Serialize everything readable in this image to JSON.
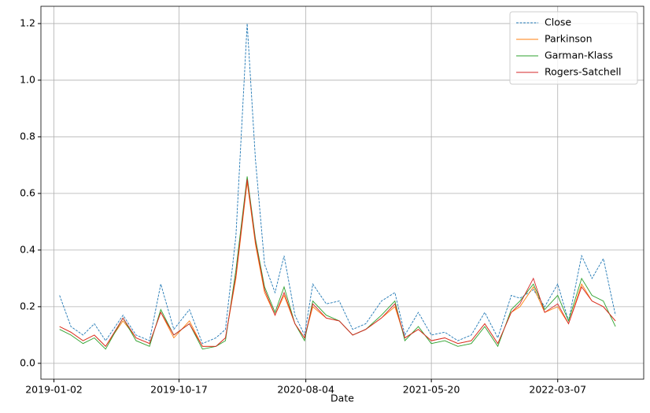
{
  "chart_data": {
    "type": "line",
    "xlabel": "Date",
    "x": [
      "2019-01-15",
      "2019-02-10",
      "2019-03-10",
      "2019-04-05",
      "2019-05-01",
      "2019-06-10",
      "2019-07-10",
      "2019-08-10",
      "2019-09-05",
      "2019-10-05",
      "2019-11-10",
      "2019-12-10",
      "2020-01-10",
      "2020-02-01",
      "2020-02-25",
      "2020-03-22",
      "2020-04-10",
      "2020-05-01",
      "2020-05-25",
      "2020-06-15",
      "2020-07-10",
      "2020-08-01",
      "2020-08-20",
      "2020-09-20",
      "2020-10-20",
      "2020-11-20",
      "2020-12-20",
      "2021-01-25",
      "2021-02-25",
      "2021-03-20",
      "2021-04-20",
      "2021-05-20",
      "2021-06-20",
      "2021-07-20",
      "2021-08-20",
      "2021-09-20",
      "2021-10-20",
      "2021-11-20",
      "2021-12-10",
      "2022-01-10",
      "2022-02-05",
      "2022-03-07",
      "2022-04-01",
      "2022-05-01",
      "2022-05-25",
      "2022-06-20",
      "2022-07-18"
    ],
    "series": [
      {
        "name": "Close",
        "color": "#1f77b4",
        "dash": true,
        "values": [
          0.24,
          0.13,
          0.1,
          0.14,
          0.08,
          0.17,
          0.1,
          0.08,
          0.28,
          0.12,
          0.19,
          0.07,
          0.09,
          0.12,
          0.45,
          1.2,
          0.72,
          0.35,
          0.25,
          0.38,
          0.17,
          0.1,
          0.28,
          0.21,
          0.22,
          0.12,
          0.14,
          0.22,
          0.25,
          0.1,
          0.18,
          0.1,
          0.11,
          0.08,
          0.1,
          0.18,
          0.09,
          0.24,
          0.23,
          0.26,
          0.2,
          0.28,
          0.15,
          0.38,
          0.3,
          0.37,
          0.17
        ]
      },
      {
        "name": "Parkinson",
        "color": "#ff7f0e",
        "dash": false,
        "values": [
          0.13,
          0.11,
          0.08,
          0.1,
          0.06,
          0.15,
          0.09,
          0.07,
          0.18,
          0.09,
          0.15,
          0.06,
          0.06,
          0.09,
          0.3,
          0.64,
          0.42,
          0.25,
          0.17,
          0.24,
          0.14,
          0.09,
          0.2,
          0.16,
          0.15,
          0.1,
          0.12,
          0.16,
          0.2,
          0.09,
          0.12,
          0.08,
          0.09,
          0.07,
          0.08,
          0.14,
          0.07,
          0.18,
          0.2,
          0.27,
          0.18,
          0.2,
          0.14,
          0.28,
          0.22,
          0.2,
          0.15
        ]
      },
      {
        "name": "Garman-Klass",
        "color": "#2ca02c",
        "dash": false,
        "values": [
          0.12,
          0.1,
          0.07,
          0.09,
          0.05,
          0.16,
          0.08,
          0.06,
          0.19,
          0.1,
          0.14,
          0.05,
          0.06,
          0.08,
          0.33,
          0.66,
          0.44,
          0.27,
          0.18,
          0.27,
          0.14,
          0.08,
          0.22,
          0.17,
          0.15,
          0.1,
          0.12,
          0.17,
          0.22,
          0.08,
          0.13,
          0.07,
          0.08,
          0.06,
          0.07,
          0.13,
          0.06,
          0.19,
          0.22,
          0.28,
          0.19,
          0.24,
          0.15,
          0.3,
          0.24,
          0.22,
          0.13
        ]
      },
      {
        "name": "Rogers-Satchell",
        "color": "#d62728",
        "dash": false,
        "values": [
          0.13,
          0.11,
          0.08,
          0.1,
          0.06,
          0.16,
          0.09,
          0.07,
          0.18,
          0.1,
          0.14,
          0.06,
          0.06,
          0.09,
          0.31,
          0.65,
          0.43,
          0.26,
          0.17,
          0.25,
          0.14,
          0.09,
          0.21,
          0.16,
          0.15,
          0.1,
          0.12,
          0.16,
          0.21,
          0.09,
          0.12,
          0.08,
          0.09,
          0.07,
          0.08,
          0.14,
          0.07,
          0.18,
          0.21,
          0.3,
          0.18,
          0.21,
          0.14,
          0.27,
          0.22,
          0.2,
          0.15
        ]
      }
    ],
    "xlim": [
      "2018-12-03",
      "2022-09-21"
    ],
    "xticks": [
      "2019-01-02",
      "2019-10-17",
      "2020-08-04",
      "2021-05-20",
      "2022-03-07"
    ],
    "ylim": [
      -0.056,
      1.261
    ],
    "yticks": [
      {
        "value": 0,
        "label": "0.0"
      },
      {
        "value": 0.2,
        "label": "0.2"
      },
      {
        "value": 0.4,
        "label": "0.4"
      },
      {
        "value": 0.6,
        "label": "0.6"
      },
      {
        "value": 0.8,
        "label": "0.8"
      },
      {
        "value": 1,
        "label": "1.0"
      },
      {
        "value": 1.2,
        "label": "1.2"
      }
    ],
    "grid": true,
    "legend": "upper right"
  }
}
